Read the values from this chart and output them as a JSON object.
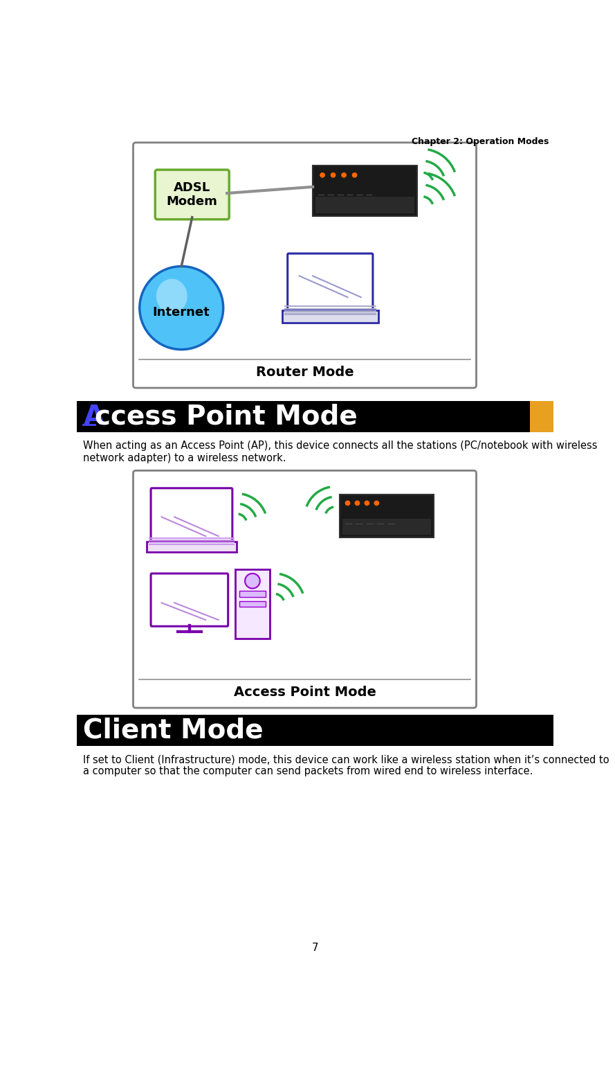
{
  "page_header": "Chapter 2: Operation Modes",
  "page_number": "7",
  "section1_title_A": "A",
  "section1_title_rest": "ccess Point Mode",
  "section1_title_bg": "#000000",
  "section1_title_text_color": "#FFFFFF",
  "section1_title_A_color": "#4444FF",
  "section1_body": "When acting as an Access Point (AP), this device connects all the stations (PC/notebook with wireless\nnetwork adapter) to a wireless network.",
  "section2_title": "Client Mode",
  "section2_title_bg": "#000000",
  "section2_title_text_color": "#FFFFFF",
  "section2_body": "If set to Client (Infrastructure) mode, this device can work like a wireless station when it’s connected to\na computer so that the computer can send packets from wired end to wireless interface.",
  "box1_label": "Router Mode",
  "box2_label": "Access Point Mode",
  "bg_color": "#FFFFFF",
  "body_fontsize": 10.5,
  "title_fontsize": 28,
  "header_fontsize": 9,
  "box_edge_color": "#808080",
  "modem_fill": "#E8F5D0",
  "modem_edge": "#6AAA30",
  "internet_fill": "#4FC3F7",
  "internet_edge": "#1565C0",
  "router_fill": "#1A1A1A",
  "wifi_color_green": "#22AA44",
  "laptop_edge": "#2929A3",
  "laptop2_edge": "#7700AA",
  "orange_bar": "#E8A020"
}
